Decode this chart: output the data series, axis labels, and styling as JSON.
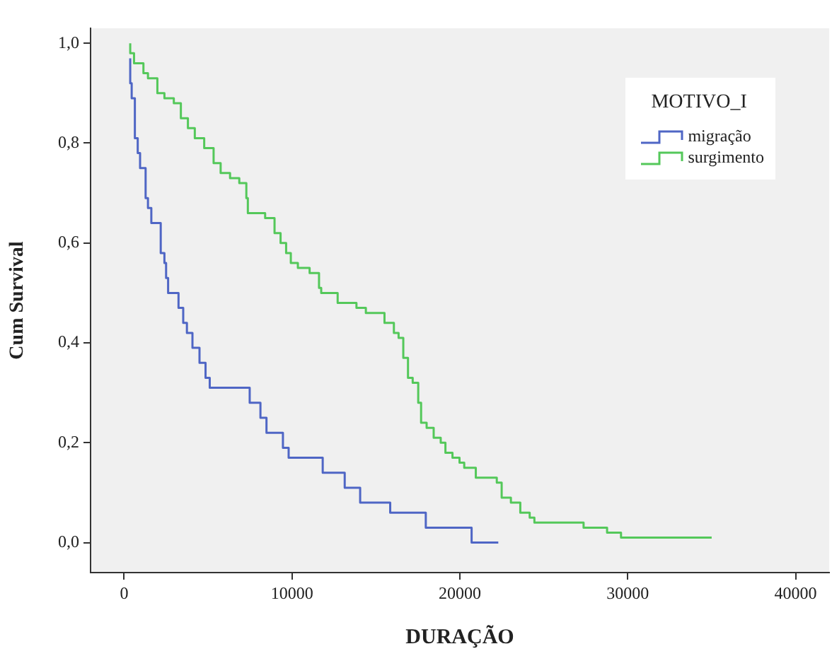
{
  "chart_data": {
    "type": "step",
    "xlabel": "DURAÇÃO",
    "ylabel": "Cum Survival",
    "legend_title": "MOTIVO_I",
    "legend": "top right",
    "grid": false,
    "marker": "none",
    "xlim": [
      -2000,
      42000
    ],
    "xticks": [
      0,
      10000,
      20000,
      30000,
      40000
    ],
    "ylim": [
      -0.06,
      1.03
    ],
    "yticks": [
      {
        "value": 0,
        "label": "0,0"
      },
      {
        "value": 0.2,
        "label": "0,2"
      },
      {
        "value": 0.4,
        "label": "0,4"
      },
      {
        "value": 0.6,
        "label": "0,6"
      },
      {
        "value": 0.8,
        "label": "0,8"
      },
      {
        "value": 1,
        "label": "1,0"
      }
    ],
    "series": [
      {
        "name": "migração",
        "color": "#4f66c5",
        "x": [
          363,
          450,
          640,
          810,
          950,
          1280,
          1420,
          1620,
          2180,
          2400,
          2500,
          2620,
          3240,
          3520,
          3740,
          4070,
          4490,
          4850,
          5100,
          7480,
          8120,
          8480,
          9460,
          9800,
          11830,
          13140,
          14060,
          15850,
          17970,
          20700,
          22290
        ],
        "values": [
          0.97,
          0.92,
          0.89,
          0.81,
          0.78,
          0.75,
          0.69,
          0.67,
          0.64,
          0.58,
          0.56,
          0.53,
          0.5,
          0.47,
          0.44,
          0.42,
          0.39,
          0.36,
          0.33,
          0.31,
          0.28,
          0.25,
          0.22,
          0.19,
          0.17,
          0.14,
          0.11,
          0.08,
          0.06,
          0.03,
          0.0
        ]
      },
      {
        "name": "surgimento",
        "color": "#54c85a",
        "x": [
          363,
          590,
          1150,
          1420,
          1980,
          2400,
          2960,
          3380,
          3800,
          4210,
          4770,
          5330,
          5750,
          6310,
          6860,
          7280,
          7370,
          8400,
          8960,
          9320,
          9650,
          9930,
          10350,
          11050,
          11610,
          11740,
          12720,
          13840,
          14400,
          14960,
          15510,
          16070,
          16350,
          16630,
          16910,
          17190,
          17520,
          17690,
          18020,
          18440,
          18860,
          19140,
          19560,
          19980,
          20260,
          20950,
          22200,
          22490,
          23040,
          23600,
          24160,
          24440,
          27370,
          27790,
          28770,
          29600,
          31830,
          35000
        ],
        "values": [
          1.0,
          0.98,
          0.96,
          0.94,
          0.93,
          0.9,
          0.89,
          0.88,
          0.85,
          0.83,
          0.81,
          0.79,
          0.76,
          0.74,
          0.73,
          0.72,
          0.69,
          0.66,
          0.65,
          0.62,
          0.6,
          0.58,
          0.56,
          0.55,
          0.54,
          0.51,
          0.5,
          0.48,
          0.47,
          0.46,
          0.46,
          0.44,
          0.42,
          0.41,
          0.37,
          0.33,
          0.32,
          0.28,
          0.24,
          0.23,
          0.21,
          0.2,
          0.18,
          0.17,
          0.16,
          0.15,
          0.13,
          0.12,
          0.09,
          0.08,
          0.06,
          0.05,
          0.04,
          0.03,
          0.03,
          0.02,
          0.01,
          0.01
        ]
      }
    ]
  }
}
